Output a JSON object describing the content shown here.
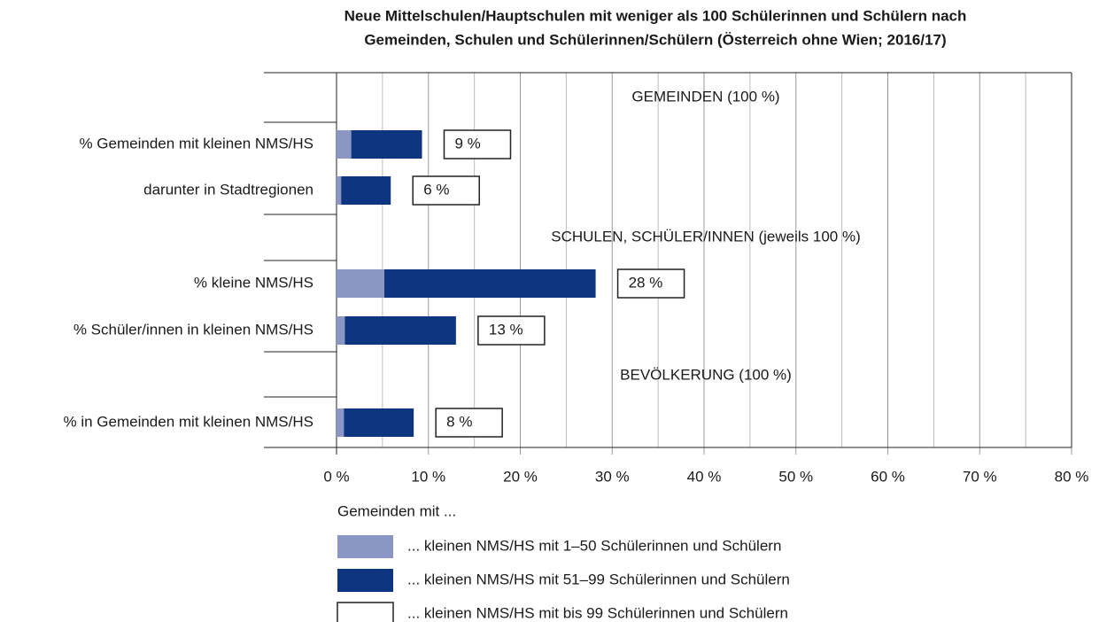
{
  "chart_data": {
    "type": "stacked-bar-horizontal",
    "title": [
      "Neue Mittelschulen/Hauptschulen mit weniger als 100 Schülerinnen und Schülern nach",
      "Gemeinden, Schulen und Schülerinnen/Schülern (Österreich ohne Wien; 2016/17)"
    ],
    "categories": [
      "% Gemeinden mit kleinen NMS/HS",
      "darunter in Stadtregionen",
      "% kleine NMS/HS",
      "% Schüler/innen in kleinen NMS/HS",
      "% in Gemeinden mit kleinen NMS/HS"
    ],
    "annotations": [
      "GEMEINDEN (100 %)",
      "SCHULEN, SCHÜLER/INNEN (jeweils 100 %)",
      "BEVÖLKERUNG (100 %)"
    ],
    "legend_title": "Gemeinden mit ...",
    "series": [
      {
        "name": "... kleinen NMS/HS mit 1–50 Schülerinnen und Schülern",
        "color": "#8c96c4",
        "values": [
          1.6,
          0.5,
          5.2,
          0.9,
          0.8
        ]
      },
      {
        "name": "... kleinen NMS/HS mit 51–99 Schülerinnen und Schülern",
        "color": "#0d3580",
        "values": [
          7.7,
          5.4,
          23.0,
          12.1,
          7.6
        ]
      },
      {
        "name": "... kleinen NMS/HS mit bis 99 Schülerinnen und Schülern",
        "color": "#ffffff",
        "values": [
          9,
          6,
          28,
          13,
          8
        ],
        "value_labels": [
          "9 %",
          "6 %",
          "28 %",
          "13 %",
          "8 %"
        ]
      }
    ],
    "xlim": [
      0,
      80
    ],
    "xticks": [
      {
        "value": 0,
        "label": "0 %"
      },
      {
        "value": 10,
        "label": "10 %"
      },
      {
        "value": 20,
        "label": "20 %"
      },
      {
        "value": 30,
        "label": "30 %"
      },
      {
        "value": 40,
        "label": "40 %"
      },
      {
        "value": 50,
        "label": "50 %"
      },
      {
        "value": 60,
        "label": "60 %"
      },
      {
        "value": 70,
        "label": "70 %"
      },
      {
        "value": 80,
        "label": "80 %"
      }
    ],
    "minor_xticks": [
      5,
      15,
      25,
      35,
      45,
      55,
      65,
      75
    ],
    "grid": true
  }
}
